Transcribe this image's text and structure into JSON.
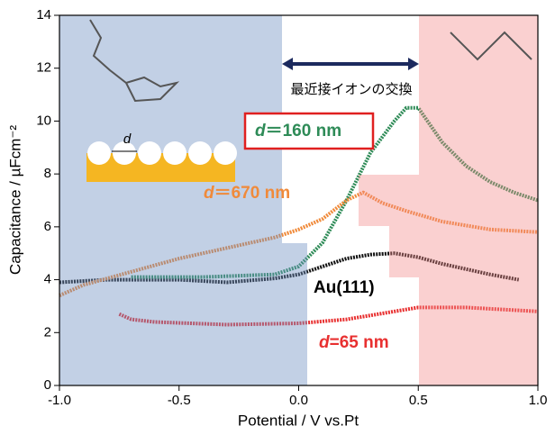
{
  "chart_data": {
    "type": "line",
    "xlabel": "Potential / V vs.Pt",
    "ylabel": "Capacitance / µFcm⁻²",
    "xlim": [
      -1.0,
      1.0
    ],
    "xticks": [
      {
        "value": -1.0,
        "label": "-1.0"
      },
      {
        "value": -0.5,
        "label": "-0.5"
      },
      {
        "value": 0.0,
        "label": "0.0"
      },
      {
        "value": 0.5,
        "label": "0.5"
      },
      {
        "value": 1.0,
        "label": "1.0"
      }
    ],
    "ylim": [
      0,
      14
    ],
    "yticks": [
      0,
      2,
      4,
      6,
      8,
      10,
      12,
      14
    ],
    "annotations": [
      "最近接イオンの交換",
      "d"
    ],
    "series": [
      {
        "name": "Au(111)",
        "color": "#111111",
        "x": [
          -1.0,
          -0.8,
          -0.5,
          -0.3,
          -0.1,
          0.0,
          0.1,
          0.2,
          0.3,
          0.4,
          0.5,
          0.6,
          0.7,
          0.8,
          0.92
        ],
        "values": [
          3.9,
          4.0,
          4.0,
          3.9,
          4.05,
          4.2,
          4.5,
          4.8,
          4.95,
          5.0,
          4.85,
          4.6,
          4.4,
          4.2,
          4.0
        ]
      },
      {
        "name": "d＝160 nm",
        "color": "#2e8b57",
        "x": [
          -0.7,
          -0.4,
          -0.1,
          0.0,
          0.1,
          0.2,
          0.3,
          0.4,
          0.45,
          0.5,
          0.6,
          0.7,
          0.8,
          0.9,
          1.0
        ],
        "values": [
          4.1,
          4.1,
          4.2,
          4.5,
          5.4,
          7.0,
          8.8,
          10.0,
          10.5,
          10.5,
          9.2,
          8.3,
          7.7,
          7.3,
          7.0
        ]
      },
      {
        "name": "d＝670 nm",
        "color": "#f08a3a",
        "x": [
          -1.0,
          -0.9,
          -0.7,
          -0.5,
          -0.3,
          -0.1,
          0.0,
          0.1,
          0.2,
          0.27,
          0.35,
          0.45,
          0.6,
          0.8,
          1.0
        ],
        "values": [
          3.4,
          3.8,
          4.3,
          4.8,
          5.2,
          5.6,
          5.9,
          6.3,
          7.0,
          7.3,
          6.9,
          6.6,
          6.2,
          5.9,
          5.8
        ]
      },
      {
        "name": "d=65 nm",
        "color": "#e83030",
        "x": [
          -0.75,
          -0.7,
          -0.6,
          -0.3,
          0.0,
          0.2,
          0.4,
          0.5,
          0.7,
          0.9,
          1.0
        ],
        "values": [
          2.7,
          2.5,
          2.4,
          2.3,
          2.35,
          2.5,
          2.8,
          2.95,
          2.95,
          2.85,
          2.8
        ]
      }
    ]
  }
}
